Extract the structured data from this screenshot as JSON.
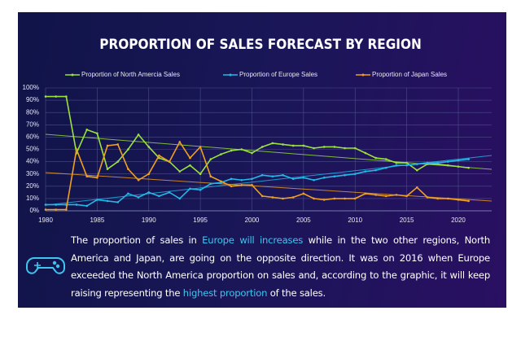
{
  "chart_data": {
    "type": "line",
    "title": "PROPORTION OF SALES FORECAST BY REGION",
    "x": [
      1980,
      1981,
      1982,
      1983,
      1984,
      1985,
      1986,
      1987,
      1988,
      1989,
      1990,
      1991,
      1992,
      1993,
      1994,
      1995,
      1996,
      1997,
      1998,
      1999,
      2000,
      2001,
      2002,
      2003,
      2004,
      2005,
      2006,
      2007,
      2008,
      2009,
      2010,
      2011,
      2012,
      2013,
      2014,
      2015,
      2016,
      2017,
      2018,
      2019,
      2020,
      2021
    ],
    "series": [
      {
        "name": "Proportion of North Amercia Sales",
        "color": "#9be23c",
        "values": [
          93,
          93,
          93,
          47,
          66,
          63,
          34,
          40,
          50,
          62,
          52,
          43,
          40,
          32,
          37,
          30,
          42,
          46,
          49,
          50,
          47,
          52,
          55,
          54,
          53,
          53,
          51,
          52,
          52,
          51,
          51,
          47,
          43,
          42,
          39,
          39,
          33,
          38,
          38,
          37,
          36,
          35
        ]
      },
      {
        "name": "Proportion of Europe Sales",
        "color": "#22b8e8",
        "values": [
          5,
          5,
          5,
          5,
          4,
          9,
          8,
          7,
          14,
          11,
          15,
          12,
          15,
          10,
          18,
          17,
          22,
          23,
          26,
          25,
          26,
          29,
          28,
          29,
          26,
          27,
          25,
          27,
          28,
          29,
          30,
          32,
          33,
          35,
          37,
          37,
          38,
          39,
          39,
          40,
          41,
          42
        ]
      },
      {
        "name": "Proportion of Japan Sales",
        "color": "#f0a020",
        "values": [
          1,
          1,
          1,
          50,
          28,
          27,
          53,
          54,
          34,
          25,
          30,
          45,
          40,
          56,
          43,
          52,
          28,
          24,
          20,
          21,
          21,
          12,
          11,
          10,
          11,
          14,
          10,
          9,
          10,
          10,
          10,
          14,
          13,
          12,
          13,
          12,
          19,
          11,
          10,
          10,
          9,
          8
        ]
      }
    ],
    "xlim": [
      1980,
      2023
    ],
    "xticks": [
      1980,
      1985,
      1990,
      1995,
      2000,
      2005,
      2010,
      2015,
      2020
    ],
    "ylim": [
      0,
      100
    ],
    "yticks": [
      {
        "value": 0,
        "label": "0%"
      },
      {
        "value": 10,
        "label": "10%"
      },
      {
        "value": 20,
        "label": "20%"
      },
      {
        "value": 30,
        "label": "30%"
      },
      {
        "value": 40,
        "label": "40%"
      },
      {
        "value": 50,
        "label": "50%"
      },
      {
        "value": 60,
        "label": "60%"
      },
      {
        "value": 70,
        "label": "70%"
      },
      {
        "value": 80,
        "label": "80%"
      },
      {
        "value": 90,
        "label": "90%"
      },
      {
        "value": 100,
        "label": "100%"
      }
    ],
    "grid": true,
    "legend": "top",
    "description": [
      {
        "text": "The proportion of sales in ",
        "highlight": false
      },
      {
        "text": "Europe will increases",
        "highlight": true
      },
      {
        "text": " while in the two other regions, North America and Japan, are going on the opposite direction. It was on 2016 when Europe exceeded the North America proportion on sales and, according to the graphic, it will keep raising representing the ",
        "highlight": false
      },
      {
        "text": "highest proportion",
        "highlight": true
      },
      {
        "text": " of the sales.",
        "highlight": false
      }
    ]
  }
}
